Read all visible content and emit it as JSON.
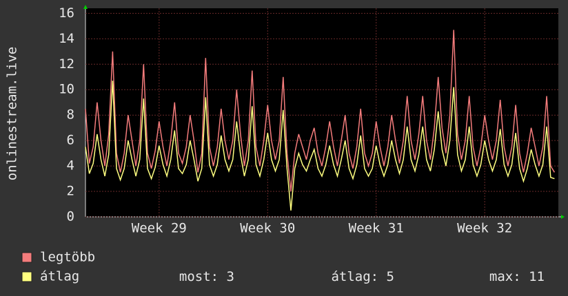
{
  "chart_data": {
    "type": "line",
    "y_label": "onlinestream.live",
    "x": [
      0,
      0.25,
      0.5,
      0.75,
      1,
      1.25,
      1.5,
      1.75,
      2,
      2.25,
      2.5,
      2.75,
      3,
      3.25,
      3.5,
      3.75,
      4,
      4.25,
      4.5,
      4.75,
      5,
      5.25,
      5.5,
      5.75,
      6,
      6.25,
      6.5,
      6.75,
      7,
      7.25,
      7.5,
      7.75,
      8,
      8.25,
      8.5,
      8.75,
      9,
      9.25,
      9.5,
      9.75,
      10,
      10.25,
      10.5,
      10.75,
      11,
      11.25,
      11.5,
      11.75,
      12,
      12.25,
      12.5,
      12.75,
      13,
      13.25,
      13.5,
      13.75,
      14,
      14.25,
      14.5,
      14.75,
      15,
      15.25,
      15.5,
      15.75,
      16,
      16.25,
      16.5,
      16.75,
      17,
      17.25,
      17.5,
      17.75,
      18,
      18.25,
      18.5,
      18.75,
      19,
      19.25,
      19.5,
      19.75,
      20,
      20.25,
      20.5,
      20.75,
      21,
      21.25,
      21.5,
      21.75,
      22,
      22.25,
      22.5,
      22.75,
      23,
      23.25,
      23.5,
      23.75,
      24,
      24.25,
      24.5,
      24.75,
      25,
      25.25,
      25.5,
      25.75,
      26,
      26.25,
      26.5,
      26.75,
      27,
      27.25,
      27.5,
      27.75,
      28,
      28.25,
      28.5,
      28.75,
      29,
      29.25,
      29.5,
      29.75,
      30,
      30.25
    ],
    "series": [
      {
        "name": "legtöbb",
        "color": "#f47c7c",
        "values": [
          8.5,
          4.2,
          5.5,
          9,
          6,
          4,
          6.5,
          13,
          5,
          3.5,
          5,
          8,
          6,
          4,
          6,
          12,
          5,
          3.8,
          5.2,
          7.5,
          5.5,
          4,
          6,
          9,
          5,
          4.2,
          5.5,
          8,
          6,
          3.5,
          5,
          12.5,
          5.5,
          4,
          5.5,
          8.5,
          6,
          4.5,
          6,
          10,
          6.5,
          4,
          6,
          11.5,
          5.5,
          4,
          6,
          8.8,
          6,
          4.5,
          6,
          11,
          5,
          2,
          5,
          6.5,
          5.5,
          4.5,
          6,
          7,
          5,
          4,
          5.5,
          7.5,
          5.5,
          4,
          6,
          8,
          5,
          3.8,
          5.5,
          8.5,
          5,
          4,
          5,
          7.5,
          5.5,
          4,
          5.5,
          8,
          6,
          4.2,
          6,
          9.5,
          6,
          4.5,
          6.5,
          9.5,
          6,
          4.5,
          7,
          11,
          7,
          5,
          8,
          14.7,
          6.5,
          4.5,
          6,
          9.5,
          5.5,
          4,
          5.5,
          8,
          6,
          4.5,
          6,
          9.2,
          5.5,
          4,
          5.5,
          8.8,
          5,
          3.5,
          5,
          7,
          5.5,
          4,
          5.5,
          9.5,
          4,
          3.5
        ]
      },
      {
        "name": "átlag",
        "color": "#ffff80",
        "values": [
          5.5,
          3.4,
          4.2,
          6.5,
          4.5,
          3.2,
          4.9,
          10.7,
          3.8,
          2.9,
          3.8,
          6,
          4.5,
          3.2,
          4.5,
          9.3,
          3.8,
          3,
          3.9,
          5.6,
          4.1,
          3.2,
          4.5,
          6.8,
          3.8,
          3.4,
          4.1,
          6,
          4.5,
          2.8,
          3.8,
          9.4,
          4.1,
          3.2,
          4.1,
          6.4,
          4.5,
          3.6,
          4.5,
          7.5,
          4.9,
          3.2,
          4.5,
          8.7,
          4.1,
          3.2,
          4.5,
          6.6,
          4.5,
          3.6,
          4.5,
          8.4,
          3.8,
          0.5,
          3.8,
          5,
          4.1,
          3.6,
          4.5,
          5.3,
          3.8,
          3.2,
          4.1,
          5.6,
          4.1,
          3.2,
          4.5,
          6,
          3.8,
          3,
          4.1,
          6.4,
          3.8,
          3.2,
          3.8,
          5.6,
          4.1,
          3.2,
          4.1,
          6,
          4.5,
          3.4,
          4.5,
          7.1,
          4.5,
          3.6,
          4.9,
          7.1,
          4.5,
          3.6,
          5.3,
          8.3,
          5.3,
          4,
          6,
          10.2,
          4.9,
          3.6,
          4.5,
          7.1,
          4.1,
          3.2,
          4.1,
          6,
          4.5,
          3.6,
          4.5,
          6.9,
          4.1,
          3.2,
          4.1,
          6.6,
          3.8,
          2.8,
          3.8,
          5.3,
          4.1,
          3.2,
          4.1,
          7.1,
          3.1,
          3
        ]
      }
    ],
    "xlim": [
      0,
      30.5
    ],
    "xticks": [
      {
        "value": 4.75,
        "label": "Week 29"
      },
      {
        "value": 11.75,
        "label": "Week 30"
      },
      {
        "value": 18.75,
        "label": "Week 31"
      },
      {
        "value": 25.75,
        "label": "Week 32"
      }
    ],
    "ylim": [
      0,
      16.4
    ],
    "yticks": [
      0,
      2,
      4,
      6,
      8,
      10,
      12,
      14,
      16
    ],
    "grid": true,
    "stats": [
      {
        "label": "most:",
        "value": 3
      },
      {
        "label": "átlag:",
        "value": 5
      },
      {
        "label": "max:",
        "value": 11
      }
    ]
  }
}
